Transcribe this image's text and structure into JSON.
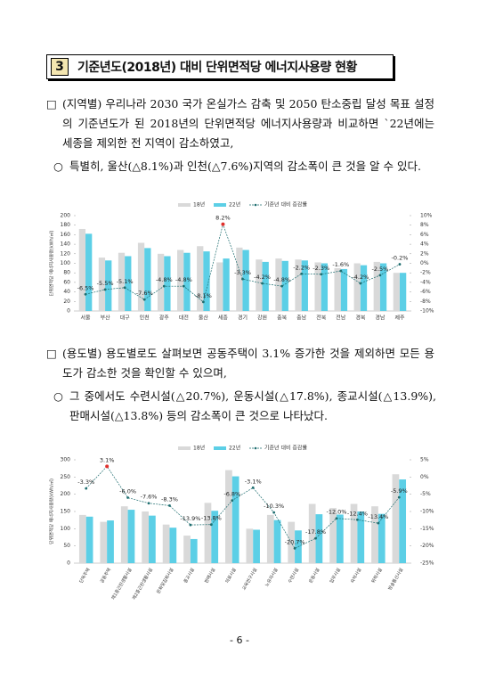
{
  "header": {
    "number": "3",
    "title": "기준년도(2018년) 대비 단위면적당 에너지사용량 현황"
  },
  "paragraphs": [
    {
      "marker": "□",
      "text": "(지역별) 우리나라 2030 국가 온실가스 감축 및 2050 탄소중립 달성 목표 설정의 기준년도가 된 2018년의 단위면적당 에너지사용량과 비교하면 `22년에는 세종을 제외한 전 지역이 감소하였고,"
    },
    {
      "marker": "○",
      "text": "특별히, 울산(△8.1%)과 인천(△7.6%)지역의 감소폭이 큰 것을 알 수 있다."
    },
    {
      "marker": "□",
      "text": "(용도별) 용도별로도 살펴보면 공동주택이 3.1% 증가한 것을 제외하면 모든 용도가 감소한 것을 확인할 수 있으며,"
    },
    {
      "marker": "○",
      "text": "그 중에서도 수련시설(△20.7%), 운동시설(△17.8%), 종교시설(△13.9%), 판매시설(△13.8%) 등의 감소폭이 큰 것으로 나타났다."
    }
  ],
  "chart_data": [
    {
      "type": "bar",
      "y_label": "단위면적당 에너지사용량(kWh/㎡)",
      "categories": [
        "서울",
        "부산",
        "대구",
        "인천",
        "광주",
        "대전",
        "울산",
        "세종",
        "경기",
        "강원",
        "충북",
        "충남",
        "전북",
        "전남",
        "경북",
        "경남",
        "제주"
      ],
      "series": [
        {
          "name": "18년",
          "color": "#d9d9d9",
          "values": [
            172,
            112,
            122,
            143,
            120,
            128,
            136,
            102,
            133,
            108,
            110,
            108,
            102,
            90,
            100,
            103,
            80
          ]
        },
        {
          "name": "22년",
          "color": "#5ccfe6",
          "values": [
            162,
            106,
            115,
            132,
            115,
            122,
            125,
            110,
            128,
            103,
            105,
            106,
            100,
            88,
            96,
            100,
            80
          ]
        },
        {
          "name": "기준년 대비 증감률",
          "color": "#1f6e70",
          "highlight_color": "#e0302c",
          "axis": "y2",
          "values": [
            -6.5,
            -5.5,
            -5.1,
            -7.6,
            -4.8,
            -4.8,
            -8.1,
            8.2,
            -3.3,
            -4.2,
            -4.8,
            -2.2,
            -2.3,
            -1.6,
            -4.2,
            -2.5,
            -0.2
          ],
          "value_labels": [
            "-6.5%",
            "-5.5%",
            "-5.1%",
            "-7.6%",
            "-4.8%",
            "-4.8%",
            "-8.1%",
            "8.2%",
            "-3.3%",
            "-4.2%",
            "-4.8%",
            "-2.2%",
            "-2.3%",
            "-1.6%",
            "-4.2%",
            "-2.5%",
            "-0.2%"
          ]
        }
      ],
      "ylim": [
        0,
        200
      ],
      "yticks": [
        0,
        20,
        40,
        60,
        80,
        100,
        120,
        140,
        160,
        180,
        200
      ],
      "y2lim": [
        -10,
        10
      ],
      "y2ticks": [
        {
          "value": -10,
          "label": "-10%"
        },
        {
          "value": -8,
          "label": "-8%"
        },
        {
          "value": -6,
          "label": "-6%"
        },
        {
          "value": -4,
          "label": "-4%"
        },
        {
          "value": -2,
          "label": "-2%"
        },
        {
          "value": 0,
          "label": "0%"
        },
        {
          "value": 2,
          "label": "2%"
        },
        {
          "value": 4,
          "label": "4%"
        },
        {
          "value": 6,
          "label": "6%"
        },
        {
          "value": 8,
          "label": "8%"
        },
        {
          "value": 10,
          "label": "10%"
        }
      ],
      "grid": false,
      "legend": "top"
    },
    {
      "type": "bar",
      "y_label": "단위면적당 에너지사용량(kWh/㎡)",
      "categories": [
        "단독주택",
        "공동주택",
        "제1종근린생활시설",
        "제2종근린생활시설",
        "문화및집회시설",
        "종교시설",
        "판매시설",
        "의료시설",
        "교육연구시설",
        "노유자시설",
        "수련시설",
        "운동시설",
        "업무시설",
        "숙박시설",
        "위락시설",
        "방송통신시설"
      ],
      "series": [
        {
          "name": "18년",
          "color": "#d9d9d9",
          "values": [
            140,
            120,
            165,
            150,
            112,
            80,
            175,
            270,
            100,
            140,
            120,
            172,
            160,
            172,
            165,
            258
          ]
        },
        {
          "name": "22년",
          "color": "#5ccfe6",
          "values": [
            135,
            124,
            155,
            138,
            103,
            70,
            152,
            252,
            97,
            125,
            95,
            142,
            141,
            150,
            143,
            243
          ]
        },
        {
          "name": "기준년 대비 증감률",
          "color": "#1f6e70",
          "highlight_color": "#e0302c",
          "axis": "y2",
          "values": [
            -3.3,
            3.1,
            -6.0,
            -7.6,
            -8.3,
            -13.9,
            -13.8,
            -6.8,
            -3.1,
            -10.3,
            -20.7,
            -17.8,
            -12.0,
            -12.4,
            -13.4,
            -5.9
          ],
          "value_labels": [
            "-3.3%",
            "3.1%",
            "-6.0%",
            "-7.6%",
            "-8.3%",
            "-13.9%",
            "-13.8%",
            "-6.8%",
            "-3.1%",
            "-10.3%",
            "-20.7%",
            "-17.8%",
            "-12.0%",
            "-12.4%",
            "-13.4%",
            "-5.9%"
          ]
        }
      ],
      "ylim": [
        0,
        300
      ],
      "yticks": [
        0,
        50,
        100,
        150,
        200,
        250,
        300
      ],
      "y2lim": [
        -25,
        5
      ],
      "y2ticks": [
        {
          "value": -25,
          "label": "-25%"
        },
        {
          "value": -20,
          "label": "-20%"
        },
        {
          "value": -15,
          "label": "-15%"
        },
        {
          "value": -10,
          "label": "-10%"
        },
        {
          "value": -5,
          "label": "-5%"
        },
        {
          "value": 0,
          "label": "0%"
        },
        {
          "value": 5,
          "label": "5%"
        }
      ],
      "grid": false,
      "legend": "top"
    }
  ],
  "page_number": "- 6 -"
}
